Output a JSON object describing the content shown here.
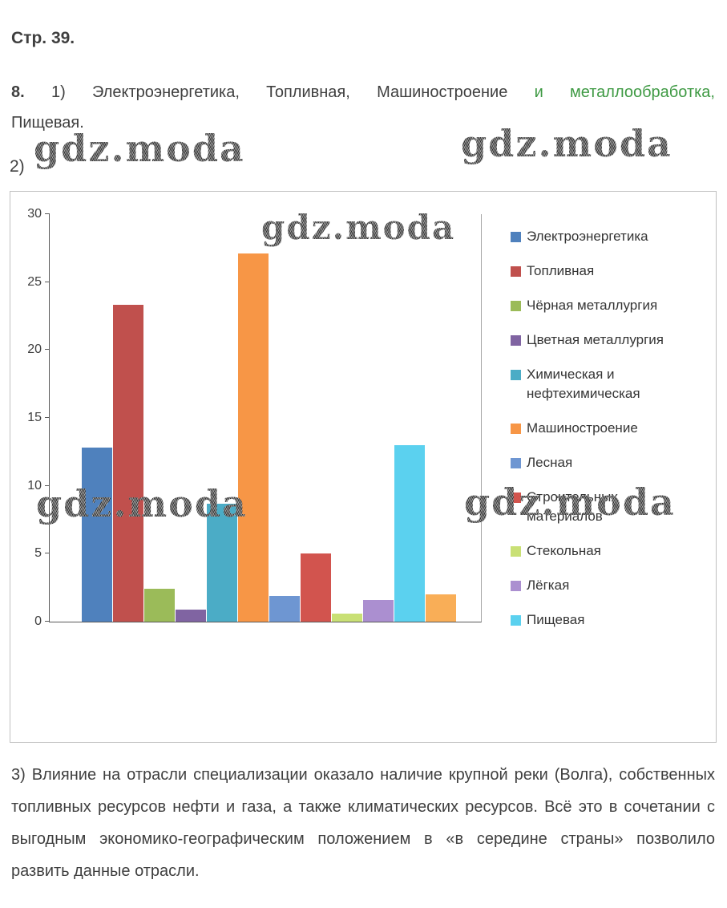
{
  "page": {
    "header": "Стр. 39.",
    "q8_number": "8.",
    "q8_part1_label": "1)",
    "q8_part1_text": "Электроэнергетика, Топливная, Машиностроение",
    "q8_part1_green": "и металлообработка,",
    "q8_part1_end": "Пищевая.",
    "q2_label": "2)",
    "part3_text": "3) Влияние на отрасли специализации оказало наличие крупной реки (Волга), собственных топливных ресурсов нефти и газа, а также климатических ресурсов. Всё это в сочетании с выгодным экономико-географическим положением в «в середине страны» позволило развить данные отрасли."
  },
  "watermark": "gdz.moda",
  "colors": {
    "accent_green": "#3f9a44",
    "body_text": "#3f3f3f",
    "axis": "#595959",
    "chart_border": "#c0c0c0"
  },
  "chart_data": {
    "type": "bar",
    "title": "",
    "xlabel": "",
    "ylabel": "",
    "ylim": [
      0,
      30
    ],
    "yticks": [
      0,
      5,
      10,
      15,
      20,
      25,
      30
    ],
    "grid": false,
    "legend_position": "right",
    "series": [
      {
        "name": "Электроэнергетика",
        "value": 12.8,
        "color": "#4f81bd"
      },
      {
        "name": "Топливная",
        "value": 23.3,
        "color": "#c0504d"
      },
      {
        "name": "Чёрная металлургия",
        "value": 2.4,
        "color": "#9bbb59"
      },
      {
        "name": "Цветная металлургия",
        "value": 0.9,
        "color": "#8064a2"
      },
      {
        "name": "Химическая и нефтехимическая",
        "value": 8.7,
        "color": "#4bacc6"
      },
      {
        "name": "Машиностроение",
        "value": 27.1,
        "color": "#f79646"
      },
      {
        "name": "Лесная",
        "value": 1.9,
        "color": "#6e96d2"
      },
      {
        "name": "Строительных материалов",
        "value": 5.0,
        "color": "#d2544e"
      },
      {
        "name": "Стекольная",
        "value": 0.6,
        "color": "#c9e075"
      },
      {
        "name": "Лёгкая",
        "value": 1.6,
        "color": "#ab8fd0"
      },
      {
        "name": "Пищевая",
        "value": 13.0,
        "color": "#5bd1ef"
      },
      {
        "name": "",
        "value": 2.0,
        "color": "#f9ae57",
        "legend": false
      }
    ]
  }
}
